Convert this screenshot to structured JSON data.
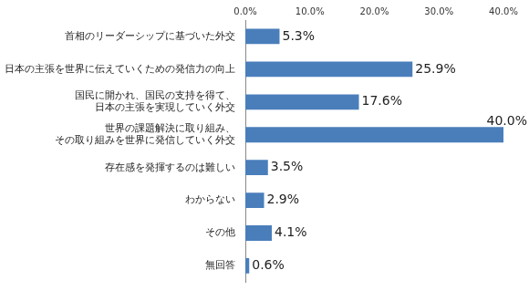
{
  "chart_data": {
    "type": "bar",
    "orientation": "horizontal",
    "categories": [
      "首相のリーダーシップに基づいた外交",
      "日本の主張を世界に伝えていくための発信力の向上",
      "国民に開かれ、国民の支持を得て、\n日本の主張を実現していく外交",
      "世界の課題解決に取り組み、\nその取り組みを世界に発信していく外交",
      "存在感を発揮するのは難しい",
      "わからない",
      "その他",
      "無回答"
    ],
    "values": [
      5.3,
      25.9,
      17.6,
      40.0,
      3.5,
      2.9,
      4.1,
      0.6
    ],
    "value_labels": [
      "5.3%",
      "25.9%",
      "17.6%",
      "40.0%",
      "3.5%",
      "2.9%",
      "4.1%",
      "0.6%"
    ],
    "color": "#4a7ebb",
    "xlim": [
      0,
      40
    ],
    "xticks": [
      {
        "value": 0,
        "label": "0.0%"
      },
      {
        "value": 10,
        "label": "10.0%"
      },
      {
        "value": 20,
        "label": "20.0%"
      },
      {
        "value": 30,
        "label": "30.0%"
      },
      {
        "value": 40,
        "label": "40.0%"
      }
    ],
    "grid": false,
    "data_labels": true
  }
}
